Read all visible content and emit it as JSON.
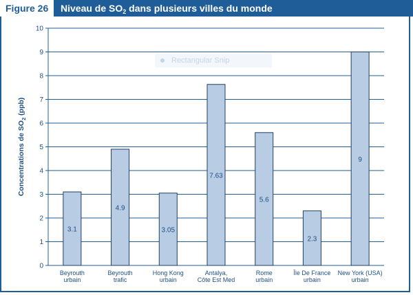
{
  "header": {
    "figure_label": "Figure 26",
    "title_pre": "Niveau de SO",
    "title_sub": "2",
    "title_post": " dans plusieurs villes du monde"
  },
  "watermark": {
    "text": "Rectangular Snip"
  },
  "colors": {
    "header_bg": "#1f5d99",
    "bar_fill": "#b8cde3",
    "bar_stroke": "#1f3f66",
    "grid": "#1f5d99",
    "text": "#1f4f85"
  },
  "chart_data": {
    "type": "bar",
    "title": "Niveau de SO2 dans plusieurs villes du monde",
    "ylabel_pre": "Concentrations de SO",
    "ylabel_sub": "2",
    "ylabel_post": " (ppb)",
    "ylim": [
      0,
      10
    ],
    "yticks": [
      "0",
      "1",
      "2",
      "3",
      "4",
      "5",
      "6",
      "7",
      "8",
      "9",
      "10"
    ],
    "grid": true,
    "categories": [
      [
        "Beyrouth",
        "urbain"
      ],
      [
        "Beyrouth",
        "trafic"
      ],
      [
        "Hong Kong",
        "urbain"
      ],
      [
        "Antalya,",
        "Côte Est Med"
      ],
      [
        "Rome",
        "urbain"
      ],
      [
        "Île De France",
        "urbain"
      ],
      [
        "New York (USA)",
        "urbain"
      ]
    ],
    "values": [
      3.1,
      4.9,
      3.05,
      7.63,
      5.6,
      2.3,
      9
    ],
    "value_labels": [
      "3.1",
      "4.9",
      "3.05",
      "7.63",
      "5.6",
      "2.3",
      "9"
    ]
  }
}
